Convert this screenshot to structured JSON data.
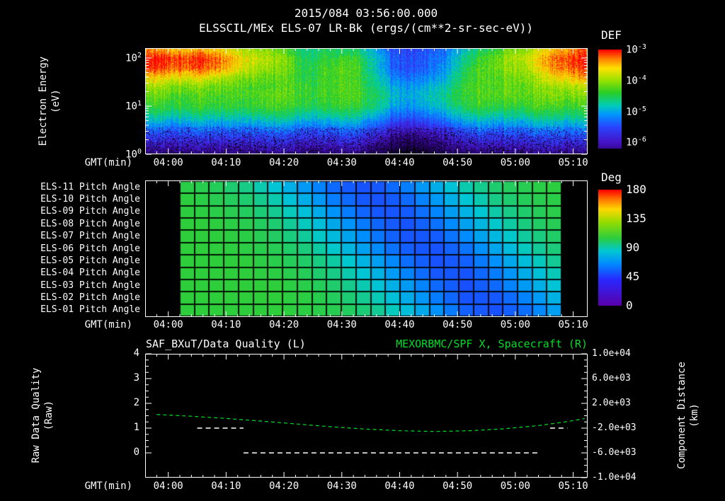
{
  "title": "2015/084 03:56:00.000",
  "axes": {
    "xlabel": "GMT(min)",
    "x_tick_labels": [
      "04:00",
      "04:10",
      "04:20",
      "04:30",
      "04:40",
      "04:50",
      "05:00",
      "05:10"
    ]
  },
  "colors": {
    "background": "#000000",
    "axis": "#ffffff",
    "text": "#ffffff",
    "accent_green": "#00dc28"
  },
  "chart_data": [
    {
      "type": "heatmap",
      "title": "ELSSCIL/MEx ELS-07 LR-Bk (ergs/(cm**2-sr-sec-eV))",
      "ylabel": "Electron Energy",
      "ylabel_units": "(eV)",
      "y_scale": "log",
      "y_tick_exponents": [
        2,
        1,
        0
      ],
      "x_range": [
        "03:56",
        "05:12"
      ],
      "colorbar": {
        "title": "DEF",
        "tick_exponents": [
          -3,
          -4,
          -5,
          -6
        ],
        "units": "ergs/(cm**2-sr-sec-eV)"
      },
      "grid": {
        "t_start": "03:56",
        "t_step_min": 3,
        "log10_flux_rows_high_to_low_energy": [
          [
            -3.4,
            -3.4,
            -3.5,
            -3.5,
            -3.6,
            -3.8,
            -4.0,
            -4.1,
            -4.3,
            -4.7,
            -4.5,
            -4.5,
            -4.6,
            -5.0,
            -5.5,
            -5.6,
            -5.5,
            -5.3,
            -4.9,
            -4.6,
            -4.3,
            -4.1,
            -3.9,
            -3.6,
            -3.3,
            -3.2
          ],
          [
            -3.0,
            -3.0,
            -3.1,
            -3.1,
            -3.2,
            -3.5,
            -3.8,
            -3.9,
            -4.1,
            -4.6,
            -4.4,
            -4.3,
            -4.4,
            -4.8,
            -5.4,
            -5.5,
            -5.4,
            -5.2,
            -4.7,
            -4.4,
            -4.1,
            -3.9,
            -3.7,
            -3.3,
            -3.1,
            -3.0
          ],
          [
            -3.1,
            -3.1,
            -3.2,
            -3.2,
            -3.3,
            -3.6,
            -3.9,
            -4.0,
            -4.1,
            -4.5,
            -4.3,
            -4.2,
            -4.3,
            -4.8,
            -5.4,
            -5.5,
            -5.4,
            -5.1,
            -4.6,
            -4.3,
            -4.1,
            -4.0,
            -3.8,
            -3.4,
            -3.2,
            -3.1
          ],
          [
            -3.6,
            -3.6,
            -3.7,
            -3.7,
            -3.8,
            -4.0,
            -4.1,
            -4.2,
            -4.2,
            -4.5,
            -4.3,
            -4.2,
            -4.3,
            -4.7,
            -5.2,
            -5.3,
            -5.2,
            -5.0,
            -4.5,
            -4.3,
            -4.2,
            -4.1,
            -4.0,
            -3.7,
            -3.5,
            -3.4
          ],
          [
            -4.0,
            -4.0,
            -4.1,
            -4.1,
            -4.2,
            -4.2,
            -4.3,
            -4.3,
            -4.2,
            -4.4,
            -4.3,
            -4.2,
            -4.3,
            -4.6,
            -5.0,
            -5.1,
            -5.0,
            -4.8,
            -4.4,
            -4.3,
            -4.2,
            -4.2,
            -4.1,
            -4.0,
            -3.9,
            -3.9
          ],
          [
            -4.2,
            -4.2,
            -4.3,
            -4.3,
            -4.3,
            -4.3,
            -4.3,
            -4.2,
            -4.2,
            -4.4,
            -4.3,
            -4.2,
            -4.3,
            -4.5,
            -4.9,
            -5.0,
            -4.9,
            -4.7,
            -4.4,
            -4.3,
            -4.2,
            -4.2,
            -4.2,
            -4.1,
            -4.1,
            -4.1
          ],
          [
            -4.4,
            -4.4,
            -4.4,
            -4.4,
            -4.4,
            -4.4,
            -4.4,
            -4.3,
            -4.3,
            -4.5,
            -4.4,
            -4.3,
            -4.4,
            -4.6,
            -5.0,
            -5.1,
            -5.0,
            -4.8,
            -4.5,
            -4.4,
            -4.4,
            -4.4,
            -4.3,
            -4.3,
            -4.3,
            -4.3
          ],
          [
            -4.7,
            -4.7,
            -4.7,
            -4.7,
            -4.7,
            -4.7,
            -4.7,
            -4.6,
            -4.6,
            -4.8,
            -4.7,
            -4.6,
            -4.7,
            -4.9,
            -5.3,
            -5.4,
            -5.3,
            -5.1,
            -4.8,
            -4.7,
            -4.7,
            -4.7,
            -4.6,
            -4.6,
            -4.6,
            -4.6
          ],
          [
            -5.1,
            -5.1,
            -5.1,
            -5.1,
            -5.1,
            -5.1,
            -5.1,
            -5.0,
            -5.0,
            -5.2,
            -5.1,
            -5.0,
            -5.1,
            -5.3,
            -5.7,
            -5.8,
            -5.7,
            -5.5,
            -5.2,
            -5.1,
            -5.1,
            -5.1,
            -5.0,
            -5.0,
            -5.0,
            -5.0
          ],
          [
            -5.5,
            -5.5,
            -5.5,
            -5.5,
            -5.5,
            -5.5,
            -5.5,
            -5.4,
            -5.4,
            -5.6,
            -5.5,
            -5.4,
            -5.5,
            -5.7,
            -6.1,
            -6.2,
            -6.1,
            -5.9,
            -5.6,
            -5.5,
            -5.5,
            -5.5,
            -5.4,
            -5.4,
            -5.4,
            -5.4
          ],
          [
            -5.9,
            -5.9,
            -5.9,
            -5.9,
            -5.9,
            -5.9,
            -5.9,
            -5.8,
            -5.8,
            -6.0,
            -5.9,
            -5.8,
            -5.9,
            -6.1,
            -6.4,
            -6.5,
            -6.4,
            -6.2,
            -6.0,
            -5.9,
            -5.9,
            -5.9,
            -5.8,
            -5.8,
            -5.8,
            -5.8
          ],
          [
            -6.3,
            -6.3,
            -6.3,
            -6.3,
            -6.3,
            -6.3,
            -6.3,
            -6.2,
            -6.2,
            -6.4,
            -6.3,
            -6.2,
            -6.3,
            -6.5,
            -6.7,
            -6.8,
            -6.7,
            -6.5,
            -6.4,
            -6.3,
            -6.3,
            -6.3,
            -6.2,
            -6.2,
            -6.2,
            -6.2
          ]
        ]
      }
    },
    {
      "type": "heatmap",
      "row_labels": [
        "ELS-11 Pitch Angle",
        "ELS-10 Pitch Angle",
        "ELS-09 Pitch Angle",
        "ELS-08 Pitch Angle",
        "ELS-07 Pitch Angle",
        "ELS-06 Pitch Angle",
        "ELS-05 Pitch Angle",
        "ELS-04 Pitch Angle",
        "ELS-03 Pitch Angle",
        "ELS-02 Pitch Angle",
        "ELS-01 Pitch Angle"
      ],
      "colorbar": {
        "title": "Deg",
        "ticks": [
          180,
          135,
          90,
          45,
          0
        ],
        "range": [
          0,
          180
        ]
      },
      "grid": {
        "t_start": "04:02",
        "t_end": "05:08",
        "pitch_angle_deg_rows_els11_to_els01": [
          [
            104,
            102,
            96,
            84,
            68,
            54,
            50,
            59,
            75,
            90,
            99,
            103,
            105
          ],
          [
            105,
            103,
            99,
            90,
            75,
            59,
            50,
            54,
            68,
            84,
            96,
            102,
            104
          ],
          [
            105,
            104,
            101,
            94,
            81,
            65,
            52,
            51,
            62,
            78,
            92,
            100,
            104
          ],
          [
            105,
            105,
            103,
            98,
            87,
            72,
            57,
            50,
            57,
            72,
            87,
            98,
            103
          ],
          [
            105,
            105,
            104,
            100,
            92,
            78,
            62,
            51,
            52,
            65,
            81,
            94,
            101
          ],
          [
            105,
            105,
            104,
            102,
            96,
            84,
            68,
            54,
            50,
            59,
            75,
            90,
            99
          ],
          [
            105,
            105,
            105,
            103,
            99,
            90,
            75,
            59,
            50,
            54,
            68,
            84,
            96
          ],
          [
            105,
            105,
            105,
            104,
            101,
            94,
            81,
            65,
            52,
            51,
            62,
            78,
            92
          ],
          [
            105,
            105,
            105,
            105,
            103,
            98,
            87,
            72,
            57,
            50,
            57,
            72,
            87
          ],
          [
            105,
            105,
            105,
            105,
            104,
            100,
            92,
            78,
            62,
            51,
            52,
            65,
            81
          ],
          [
            105,
            105,
            105,
            105,
            104,
            102,
            96,
            84,
            68,
            54,
            50,
            59,
            75
          ]
        ]
      }
    },
    {
      "type": "line",
      "title_left": "SAF_BXuT/Data Quality (L)",
      "title_right": "MEXORBMC/SPF X, Spacecraft (R)",
      "ylabel_left": "Raw Data Quality",
      "ylabel_left_units": "(Raw)",
      "ylabel_right": "Component Distance",
      "ylabel_right_units": "(km)",
      "y_left_ticks": [
        4,
        3,
        2,
        1,
        0
      ],
      "y_right_tick_labels": [
        "1.0e+04",
        "6.0e+03",
        "2.0e+03",
        "-2.0e+03",
        "-6.0e+03",
        "-1.0e+04"
      ],
      "series": [
        {
          "name": "SAF_BXuT/Data Quality",
          "axis": "left",
          "color": "#ffffff",
          "style": "dashed",
          "segments": [
            {
              "level": 1,
              "start": "04:05",
              "end": "04:13"
            },
            {
              "level": 0,
              "start": "04:13",
              "end": "05:04"
            },
            {
              "level": 1,
              "start": "05:06",
              "end": "05:09"
            }
          ]
        },
        {
          "name": "MEXORBMC/SPF X Spacecraft",
          "axis": "right",
          "color": "#00dc28",
          "style": "dashed",
          "points": [
            [
              "03:58",
              200
            ],
            [
              "04:04",
              -80
            ],
            [
              "04:10",
              -440
            ],
            [
              "04:16",
              -860
            ],
            [
              "04:22",
              -1320
            ],
            [
              "04:28",
              -1770
            ],
            [
              "04:34",
              -2150
            ],
            [
              "04:40",
              -2420
            ],
            [
              "04:46",
              -2540
            ],
            [
              "04:52",
              -2430
            ],
            [
              "04:58",
              -2110
            ],
            [
              "05:04",
              -1590
            ],
            [
              "05:09",
              -950
            ],
            [
              "05:12",
              -450
            ]
          ]
        }
      ]
    }
  ]
}
